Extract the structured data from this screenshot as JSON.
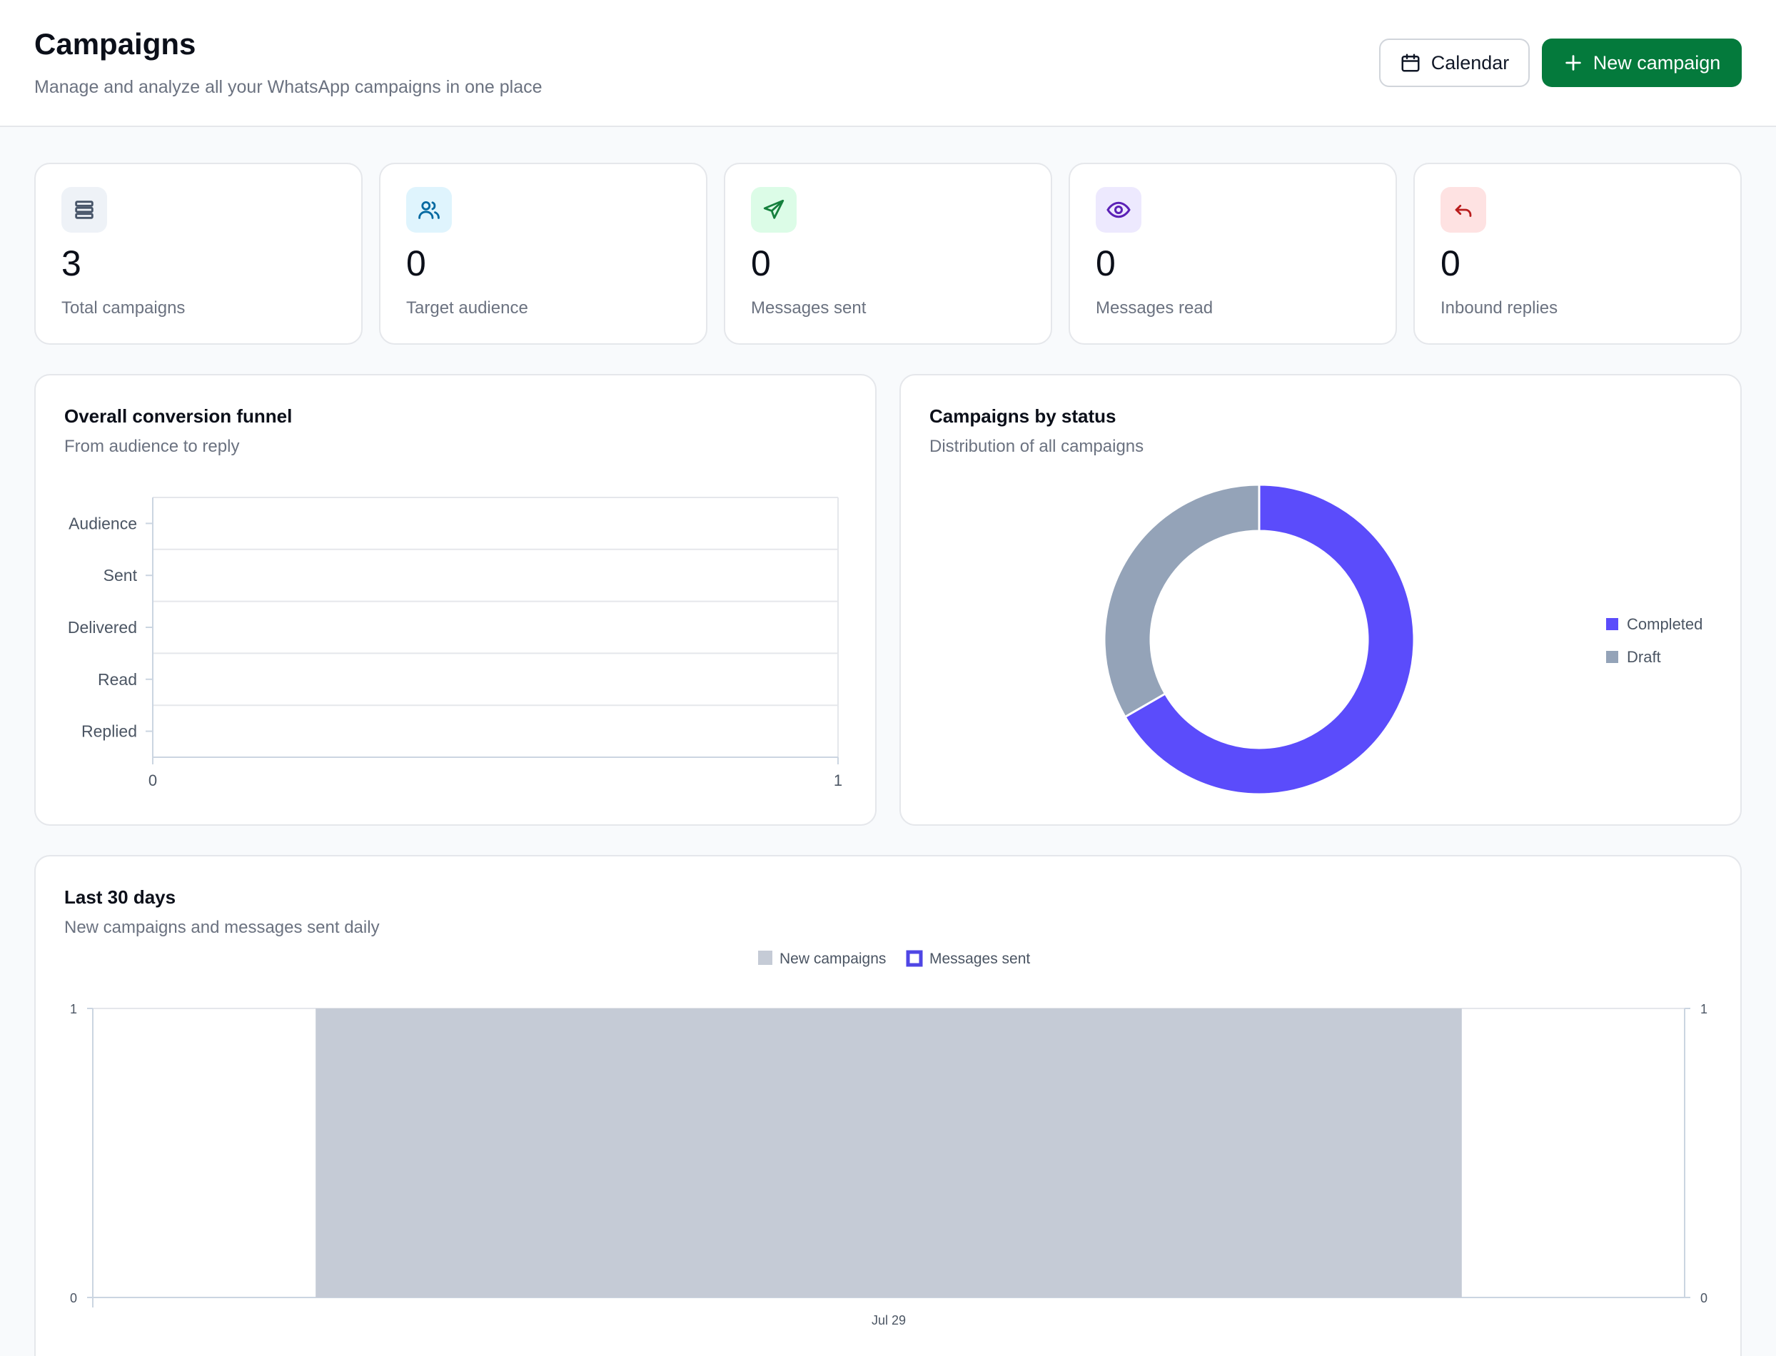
{
  "header": {
    "title": "Campaigns",
    "subtitle": "Manage and analyze all your WhatsApp campaigns in one place",
    "calendar_label": "Calendar",
    "new_campaign_label": "New campaign"
  },
  "stats": [
    {
      "icon": "list-icon",
      "value": "3",
      "label": "Total campaigns",
      "icon_bg": "#eef2f7",
      "icon_color": "#475569"
    },
    {
      "icon": "users-icon",
      "value": "0",
      "label": "Target audience",
      "icon_bg": "#dff4fd",
      "icon_color": "#0369a1"
    },
    {
      "icon": "send-icon",
      "value": "0",
      "label": "Messages sent",
      "icon_bg": "#dcfce7",
      "icon_color": "#15803d"
    },
    {
      "icon": "eye-icon",
      "value": "0",
      "label": "Messages read",
      "icon_bg": "#ede9fe",
      "icon_color": "#5b21b6"
    },
    {
      "icon": "reply-icon",
      "value": "0",
      "label": "Inbound replies",
      "icon_bg": "#fee2e2",
      "icon_color": "#b91c1c"
    }
  ],
  "funnel": {
    "title": "Overall conversion funnel",
    "subtitle": "From audience to reply"
  },
  "status_panel": {
    "title": "Campaigns by status",
    "subtitle": "Distribution of all campaigns"
  },
  "trend_panel": {
    "title": "Last 30 days",
    "subtitle": "New campaigns and messages sent daily"
  },
  "chart_data": [
    {
      "type": "bar",
      "orientation": "horizontal",
      "categories": [
        "Audience",
        "Sent",
        "Delivered",
        "Read",
        "Replied"
      ],
      "values": [
        0,
        0,
        0,
        0,
        0
      ],
      "xlim": [
        0,
        1
      ],
      "x_ticks": [
        "0",
        "1"
      ],
      "grid": true
    },
    {
      "type": "pie",
      "donut": true,
      "labels": [
        "Completed",
        "Draft"
      ],
      "values": [
        2,
        1
      ],
      "colors": [
        "#5b4cfb",
        "#94a3b8"
      ],
      "legend": "right"
    },
    {
      "type": "bar",
      "categories": [
        "Jul 29"
      ],
      "series": [
        {
          "name": "New campaigns",
          "values": [
            1
          ],
          "color": "#c5cbd6",
          "axis": "left"
        },
        {
          "name": "Messages sent",
          "values": [
            0
          ],
          "color": "#4f46e5",
          "axis": "right"
        }
      ],
      "ylim_left": [
        0,
        1
      ],
      "ylim_right": [
        0,
        1
      ],
      "y_ticks_left": [
        "0",
        "1"
      ],
      "y_ticks_right": [
        "0",
        "1"
      ],
      "legend": "top"
    }
  ]
}
